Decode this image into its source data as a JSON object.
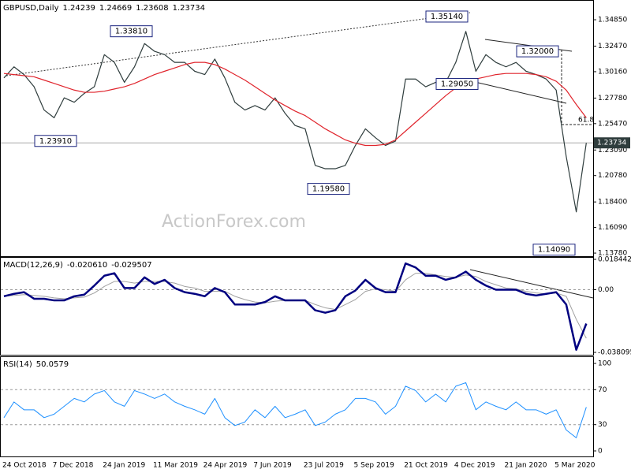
{
  "chart_data": [
    {
      "type": "line",
      "title": "GBPUSD,Daily",
      "header_values": [
        1.24239,
        1.24669,
        1.23608,
        1.23734
      ],
      "watermark": "ActionForex.com",
      "current_price": 1.23734,
      "fib_level": 61.8,
      "ylim": [
        1.135,
        1.3642
      ],
      "yticks": [
        {
          "value": 1.3485,
          "label": "1.34850"
        },
        {
          "value": 1.3247,
          "label": "1.32470"
        },
        {
          "value": 1.3016,
          "label": "1.30160"
        },
        {
          "value": 1.2778,
          "label": "1.27780"
        },
        {
          "value": 1.2547,
          "label": "1.25470"
        },
        {
          "value": 1.2309,
          "label": "1.23090"
        },
        {
          "value": 1.2078,
          "label": "1.20780"
        },
        {
          "value": 1.184,
          "label": "1.18400"
        },
        {
          "value": 1.1609,
          "label": "1.16090"
        },
        {
          "value": 1.1378,
          "label": "1.13780"
        }
      ],
      "annotations": [
        {
          "value": 1.3514,
          "label": "1.35140"
        },
        {
          "value": 1.3381,
          "label": "1.33810"
        },
        {
          "value": 1.32,
          "label": "1.32000"
        },
        {
          "value": 1.2905,
          "label": "1.29050"
        },
        {
          "value": 1.2391,
          "label": "1.23910"
        },
        {
          "value": 1.1958,
          "label": "1.19580"
        },
        {
          "value": 1.1409,
          "label": "1.14090"
        }
      ],
      "series": [
        {
          "color": "#2f3d3d",
          "line_width": 1.2,
          "values": [
            1.296,
            1.306,
            1.299,
            1.288,
            1.267,
            1.26,
            1.278,
            1.274,
            1.282,
            1.288,
            1.317,
            1.31,
            1.292,
            1.306,
            1.327,
            1.32,
            1.317,
            1.31,
            1.31,
            1.302,
            1.299,
            1.313,
            1.296,
            1.274,
            1.267,
            1.271,
            1.267,
            1.278,
            1.264,
            1.253,
            1.25,
            1.217,
            1.214,
            1.214,
            1.217,
            1.235,
            1.25,
            1.242,
            1.235,
            1.239,
            1.295,
            1.295,
            1.288,
            1.292,
            1.292,
            1.31,
            1.338,
            1.302,
            1.317,
            1.31,
            1.306,
            1.31,
            1.302,
            1.299,
            1.295,
            1.285,
            1.225,
            1.175,
            1.23734
          ]
        },
        {
          "color": "#e0242c",
          "line_width": 1.2,
          "values": [
            1.3,
            1.299,
            1.298,
            1.297,
            1.294,
            1.291,
            1.288,
            1.285,
            1.283,
            1.283,
            1.284,
            1.286,
            1.288,
            1.291,
            1.295,
            1.299,
            1.302,
            1.305,
            1.308,
            1.31,
            1.31,
            1.308,
            1.304,
            1.299,
            1.294,
            1.288,
            1.282,
            1.276,
            1.271,
            1.266,
            1.262,
            1.256,
            1.25,
            1.245,
            1.24,
            1.237,
            1.235,
            1.235,
            1.236,
            1.24,
            1.248,
            1.256,
            1.264,
            1.272,
            1.28,
            1.287,
            1.292,
            1.295,
            1.297,
            1.299,
            1.3,
            1.3,
            1.3,
            1.299,
            1.297,
            1.293,
            1.285,
            1.272,
            1.26
          ]
        }
      ]
    },
    {
      "type": "line",
      "title": "MACD(12,26,9)",
      "header_values": [
        {
          "value": -0.02061,
          "label": "-0.020610"
        },
        -0.029507
      ],
      "ylim": [
        -0.038095,
        0.018442
      ],
      "yticks": [
        0.018442,
        {
          "value": 0,
          "label": "0.00"
        },
        -0.038095
      ],
      "reference_lines": [
        0
      ],
      "series": [
        {
          "color": "#a0a0a0",
          "line_width": 1,
          "values": [
            -0.004,
            -0.0035,
            -0.003,
            -0.0035,
            -0.004,
            -0.005,
            -0.0055,
            -0.005,
            -0.0045,
            -0.002,
            0.002,
            0.005,
            0.005,
            0.004,
            0.005,
            0.005,
            0.005,
            0.004,
            0.002,
            0.001,
            -0.001,
            -0.001,
            -0.001,
            -0.004,
            -0.006,
            -0.0075,
            -0.008,
            -0.007,
            -0.0065,
            -0.0065,
            -0.0065,
            -0.009,
            -0.011,
            -0.012,
            -0.009,
            -0.006,
            -0.001,
            0.0005,
            0,
            -0.001,
            0.006,
            0.01,
            0.01,
            0.009,
            0.008,
            0.0075,
            0.009,
            0.008,
            0.005,
            0.003,
            0.001,
            0.0005,
            -0.001,
            -0.002,
            -0.0025,
            -0.002,
            -0.004,
            -0.018,
            -0.029507
          ]
        },
        {
          "color": "#000080",
          "line_width": 2.5,
          "values": [
            -0.004,
            -0.0025,
            -0.0015,
            -0.0055,
            -0.0055,
            -0.0065,
            -0.0065,
            -0.004,
            -0.003,
            0.0025,
            0.0085,
            0.01,
            0.001,
            0.001,
            0.0075,
            0.0035,
            0.006,
            0.001,
            -0.0015,
            -0.0025,
            -0.004,
            0.001,
            -0.0015,
            -0.009,
            -0.009,
            -0.009,
            -0.0075,
            -0.004,
            -0.0065,
            -0.0065,
            -0.0065,
            -0.0125,
            -0.014,
            -0.0125,
            -0.004,
            -0.0005,
            0.006,
            0.001,
            -0.0015,
            -0.0015,
            0.016,
            0.0135,
            0.0085,
            0.0085,
            0.006,
            0.0075,
            0.011,
            0.006,
            0.0025,
            0,
            0,
            0,
            -0.0025,
            -0.0035,
            -0.0025,
            -0.0015,
            -0.009,
            -0.0365,
            -0.02061
          ]
        }
      ]
    },
    {
      "type": "line",
      "title": "RSI(14)",
      "header_values": [
        50.0579
      ],
      "ylim": [
        -7.2,
        105.4
      ],
      "yticks": [
        100,
        70,
        30,
        0
      ],
      "reference_lines": [
        70,
        30
      ],
      "categories": [
        "24 Oct 2018",
        null,
        null,
        null,
        null,
        "7 Dec 2018",
        null,
        null,
        null,
        null,
        "24 Jan 2019",
        null,
        null,
        null,
        null,
        "11 Mar 2019",
        null,
        null,
        null,
        null,
        "24 Apr 2019",
        null,
        null,
        null,
        null,
        "7 Jun 2019",
        null,
        null,
        null,
        null,
        "23 Jul 2019",
        null,
        null,
        null,
        null,
        "5 Sep 2019",
        null,
        null,
        null,
        null,
        "21 Oct 2019",
        null,
        null,
        null,
        null,
        "4 Dec 2019",
        null,
        null,
        null,
        null,
        "21 Jan 2020",
        null,
        null,
        null,
        null,
        "5 Mar 2020",
        null,
        null,
        null
      ],
      "series": [
        {
          "color": "#1e90ff",
          "line_width": 1,
          "values": [
            38,
            56,
            47,
            47,
            38,
            42,
            51,
            60,
            56,
            65,
            69,
            56,
            51,
            69,
            65,
            60,
            65,
            56,
            51,
            47,
            42,
            60,
            38,
            29,
            33,
            47,
            38,
            51,
            38,
            42,
            47,
            29,
            33,
            42,
            47,
            60,
            60,
            56,
            42,
            51,
            74,
            69,
            56,
            65,
            56,
            74,
            78,
            47,
            56,
            51,
            47,
            56,
            47,
            47,
            42,
            47,
            24,
            15,
            50.0579
          ]
        }
      ]
    }
  ]
}
